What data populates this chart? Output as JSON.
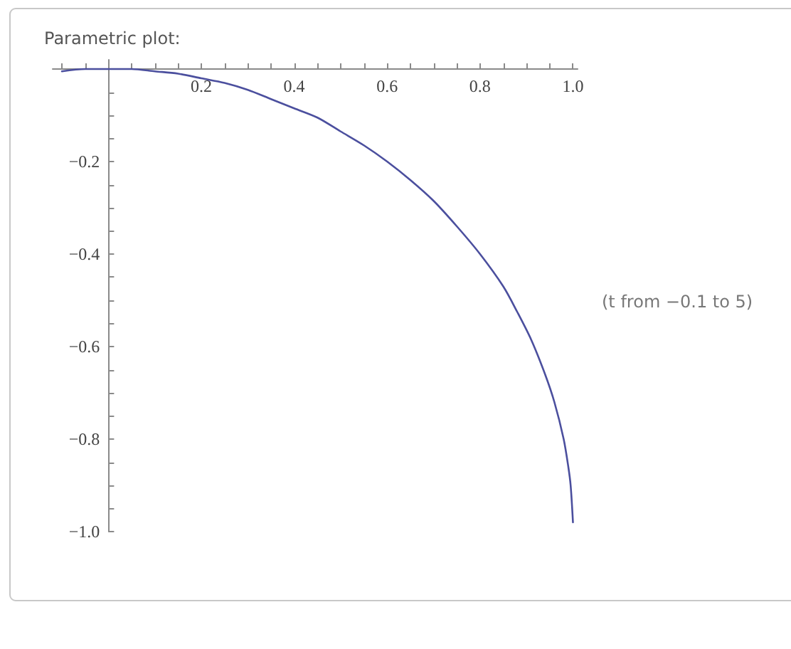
{
  "chart_data": {
    "type": "line",
    "title": "Parametric plot:",
    "annotations": [
      "(t from −0.1 to 5)"
    ],
    "x": [
      -0.1,
      -0.05,
      0,
      0.05,
      0.1,
      0.15,
      0.2,
      0.25,
      0.3,
      0.35,
      0.4,
      0.45,
      0.5,
      0.55,
      0.6,
      0.65,
      0.7,
      0.75,
      0.8,
      0.85,
      0.88,
      0.91,
      0.94,
      0.96,
      0.98,
      0.99,
      0.995,
      1.0
    ],
    "series": [
      {
        "color": "#4b4f9e",
        "values": [
          -0.005,
          0,
          0,
          0,
          -0.005,
          -0.01,
          -0.02,
          -0.03,
          -0.045,
          -0.065,
          -0.085,
          -0.105,
          -0.135,
          -0.165,
          -0.2,
          -0.24,
          -0.285,
          -0.34,
          -0.4,
          -0.47,
          -0.525,
          -0.585,
          -0.66,
          -0.72,
          -0.8,
          -0.86,
          -0.9,
          -0.98
        ]
      }
    ],
    "xlim": [
      -0.12,
      1.01
    ],
    "ylim": [
      -1.0,
      0.02
    ],
    "xticks": [
      {
        "value": -0.1,
        "label": null
      },
      {
        "value": -0.05,
        "label": null
      },
      {
        "value": 0.05,
        "label": null
      },
      {
        "value": 0.1,
        "label": null
      },
      {
        "value": 0.15,
        "label": null
      },
      0.2,
      {
        "value": 0.25,
        "label": null
      },
      {
        "value": 0.3,
        "label": null
      },
      {
        "value": 0.35,
        "label": null
      },
      0.4,
      {
        "value": 0.45,
        "label": null
      },
      {
        "value": 0.5,
        "label": null
      },
      {
        "value": 0.55,
        "label": null
      },
      0.6,
      {
        "value": 0.65,
        "label": null
      },
      {
        "value": 0.7,
        "label": null
      },
      {
        "value": 0.75,
        "label": null
      },
      0.8,
      {
        "value": 0.85,
        "label": null
      },
      {
        "value": 0.9,
        "label": null
      },
      {
        "value": 0.95,
        "label": null
      },
      {
        "value": 1,
        "label": "1.0"
      }
    ],
    "yticks": [
      {
        "value": -0.05,
        "label": null
      },
      {
        "value": -0.1,
        "label": null
      },
      {
        "value": -0.15,
        "label": null
      },
      {
        "value": -0.2,
        "label": "−0.2"
      },
      {
        "value": -0.25,
        "label": null
      },
      {
        "value": -0.3,
        "label": null
      },
      {
        "value": -0.35,
        "label": null
      },
      {
        "value": -0.4,
        "label": "−0.4"
      },
      {
        "value": -0.45,
        "label": null
      },
      {
        "value": -0.5,
        "label": null
      },
      {
        "value": -0.55,
        "label": null
      },
      {
        "value": -0.6,
        "label": "−0.6"
      },
      {
        "value": -0.65,
        "label": null
      },
      {
        "value": -0.7,
        "label": null
      },
      {
        "value": -0.75,
        "label": null
      },
      {
        "value": -0.8,
        "label": "−0.8"
      },
      {
        "value": -0.85,
        "label": null
      },
      {
        "value": -0.9,
        "label": null
      },
      {
        "value": -0.95,
        "label": null
      },
      {
        "value": -1,
        "label": "−1.0"
      }
    ]
  }
}
